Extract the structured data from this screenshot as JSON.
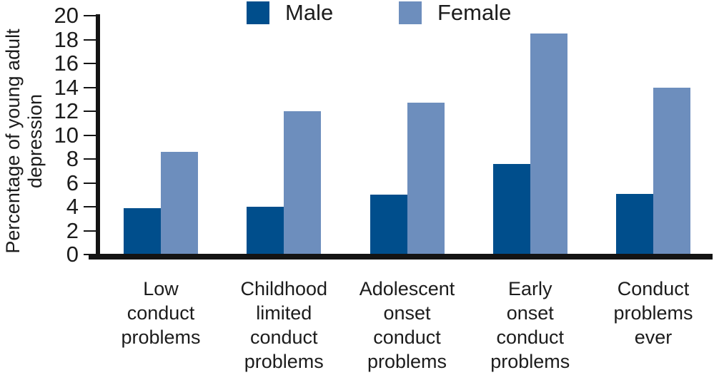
{
  "figure": {
    "y_axis_label_line1": "Percentage of young adult",
    "y_axis_label_line2": "depression"
  },
  "chart_data": {
    "type": "bar",
    "title": "",
    "xlabel": "",
    "ylabel": "Percentage of young adult depression",
    "categories": [
      "Low conduct problems",
      "Childhood limited conduct problems",
      "Adolescent onset conduct problems",
      "Early onset conduct problems",
      "Conduct problems ever"
    ],
    "series": [
      {
        "name": "Male",
        "color": "#004e8c",
        "values": [
          3.9,
          4.0,
          5.0,
          7.6,
          5.1
        ]
      },
      {
        "name": "Female",
        "color": "#6d8ebd",
        "values": [
          8.6,
          12.0,
          12.7,
          18.5,
          14.0
        ]
      }
    ],
    "ylim": [
      0,
      20
    ],
    "yticks": [
      0,
      2,
      4,
      6,
      8,
      10,
      12,
      14,
      16,
      18,
      20
    ],
    "grid": false,
    "legend_position": "top",
    "axis_color": "#141414",
    "text_color": "#1c1c1c"
  }
}
